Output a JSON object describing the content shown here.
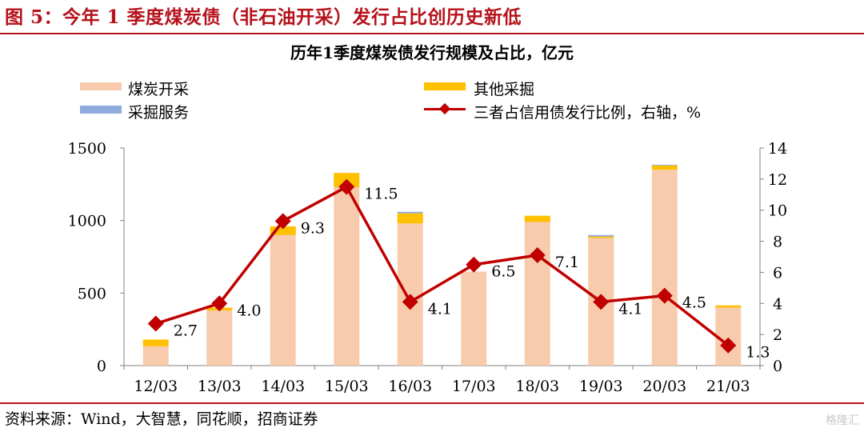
{
  "figure": {
    "title": "图 5：今年 1 季度煤炭债（非石油开采）发行占比创历史新低",
    "source": "资料来源：Wind，大智慧，同花顺，招商证券",
    "watermark": "格隆汇"
  },
  "colors": {
    "mining": "#f8cbad",
    "other": "#ffc000",
    "service": "#8faadc",
    "ratio": "#c00000",
    "accent": "#b5121b"
  },
  "chart_data": {
    "type": "bar",
    "stacked": true,
    "title": "历年1季度煤炭债发行规模及占比，亿元",
    "categories": [
      "12/03",
      "13/03",
      "14/03",
      "15/03",
      "16/03",
      "17/03",
      "18/03",
      "19/03",
      "20/03",
      "21/03"
    ],
    "series": [
      {
        "name": "煤炭开采",
        "axis": "left",
        "values": [
          133,
          380,
          900,
          1230,
          980,
          648,
          990,
          880,
          1350,
          400
        ]
      },
      {
        "name": "其他采掘",
        "axis": "left",
        "values": [
          47,
          20,
          60,
          98,
          70,
          0,
          43,
          10,
          30,
          15
        ]
      },
      {
        "name": "采掘服务",
        "axis": "left",
        "values": [
          0,
          0,
          0,
          0,
          10,
          0,
          0,
          10,
          5,
          0
        ]
      },
      {
        "name": "三者占信用债发行比例，右轴，%",
        "type": "line",
        "axis": "right",
        "values": [
          2.7,
          4.0,
          9.3,
          11.5,
          4.1,
          6.5,
          7.1,
          4.1,
          4.5,
          1.3
        ],
        "labels": [
          "2.7",
          "4.0",
          "9.3",
          "11.5",
          "4.1",
          "6.5",
          "7.1",
          "4.1",
          "4.5",
          "1.3"
        ]
      }
    ],
    "y_left": {
      "min": 0,
      "max": 1500,
      "ticks": [
        "0",
        "500",
        "1000",
        "1500"
      ]
    },
    "y_right": {
      "min": 0,
      "max": 14,
      "ticks": [
        "0",
        "2",
        "4",
        "6",
        "8",
        "10",
        "12",
        "14"
      ]
    },
    "grid": false,
    "legend_position": "top"
  }
}
